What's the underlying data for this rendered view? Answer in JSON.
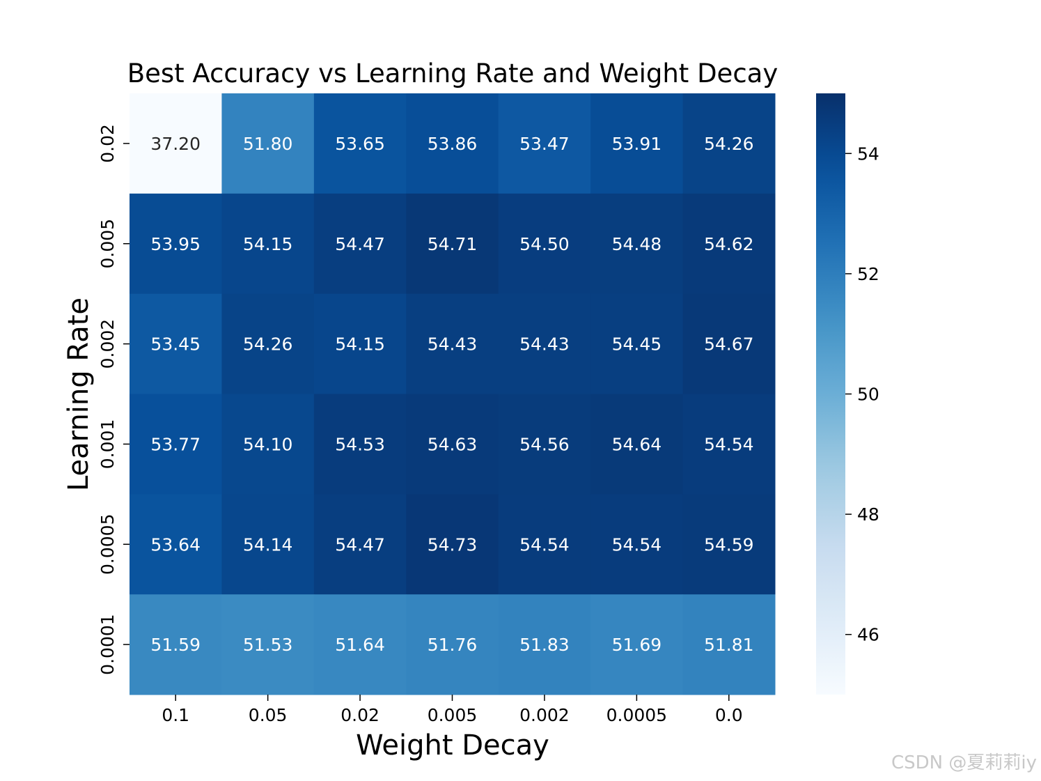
{
  "chart_data": {
    "type": "heatmap",
    "title": "Best Accuracy vs Learning Rate and Weight Decay",
    "xlabel": "Weight Decay",
    "ylabel": "Learning Rate",
    "x_categories": [
      "0.1",
      "0.05",
      "0.02",
      "0.005",
      "0.002",
      "0.0005",
      "0.0"
    ],
    "y_categories": [
      "0.02",
      "0.005",
      "0.002",
      "0.001",
      "0.0005",
      "0.0001"
    ],
    "values": [
      [
        37.2,
        51.8,
        53.65,
        53.86,
        53.47,
        53.91,
        54.26
      ],
      [
        53.95,
        54.15,
        54.47,
        54.71,
        54.5,
        54.48,
        54.62
      ],
      [
        53.45,
        54.26,
        54.15,
        54.43,
        54.43,
        54.45,
        54.67
      ],
      [
        53.77,
        54.1,
        54.53,
        54.63,
        54.56,
        54.64,
        54.54
      ],
      [
        53.64,
        54.14,
        54.47,
        54.73,
        54.54,
        54.54,
        54.59
      ],
      [
        51.59,
        51.53,
        51.64,
        51.76,
        51.83,
        51.69,
        51.81
      ]
    ],
    "value_format_decimals": 2,
    "colormap": "Blues",
    "color_range": [
      45.0,
      55.0
    ],
    "colorbar_ticks": [
      46,
      48,
      50,
      52,
      54
    ]
  },
  "watermark": "CSDN @夏莉莉iy"
}
